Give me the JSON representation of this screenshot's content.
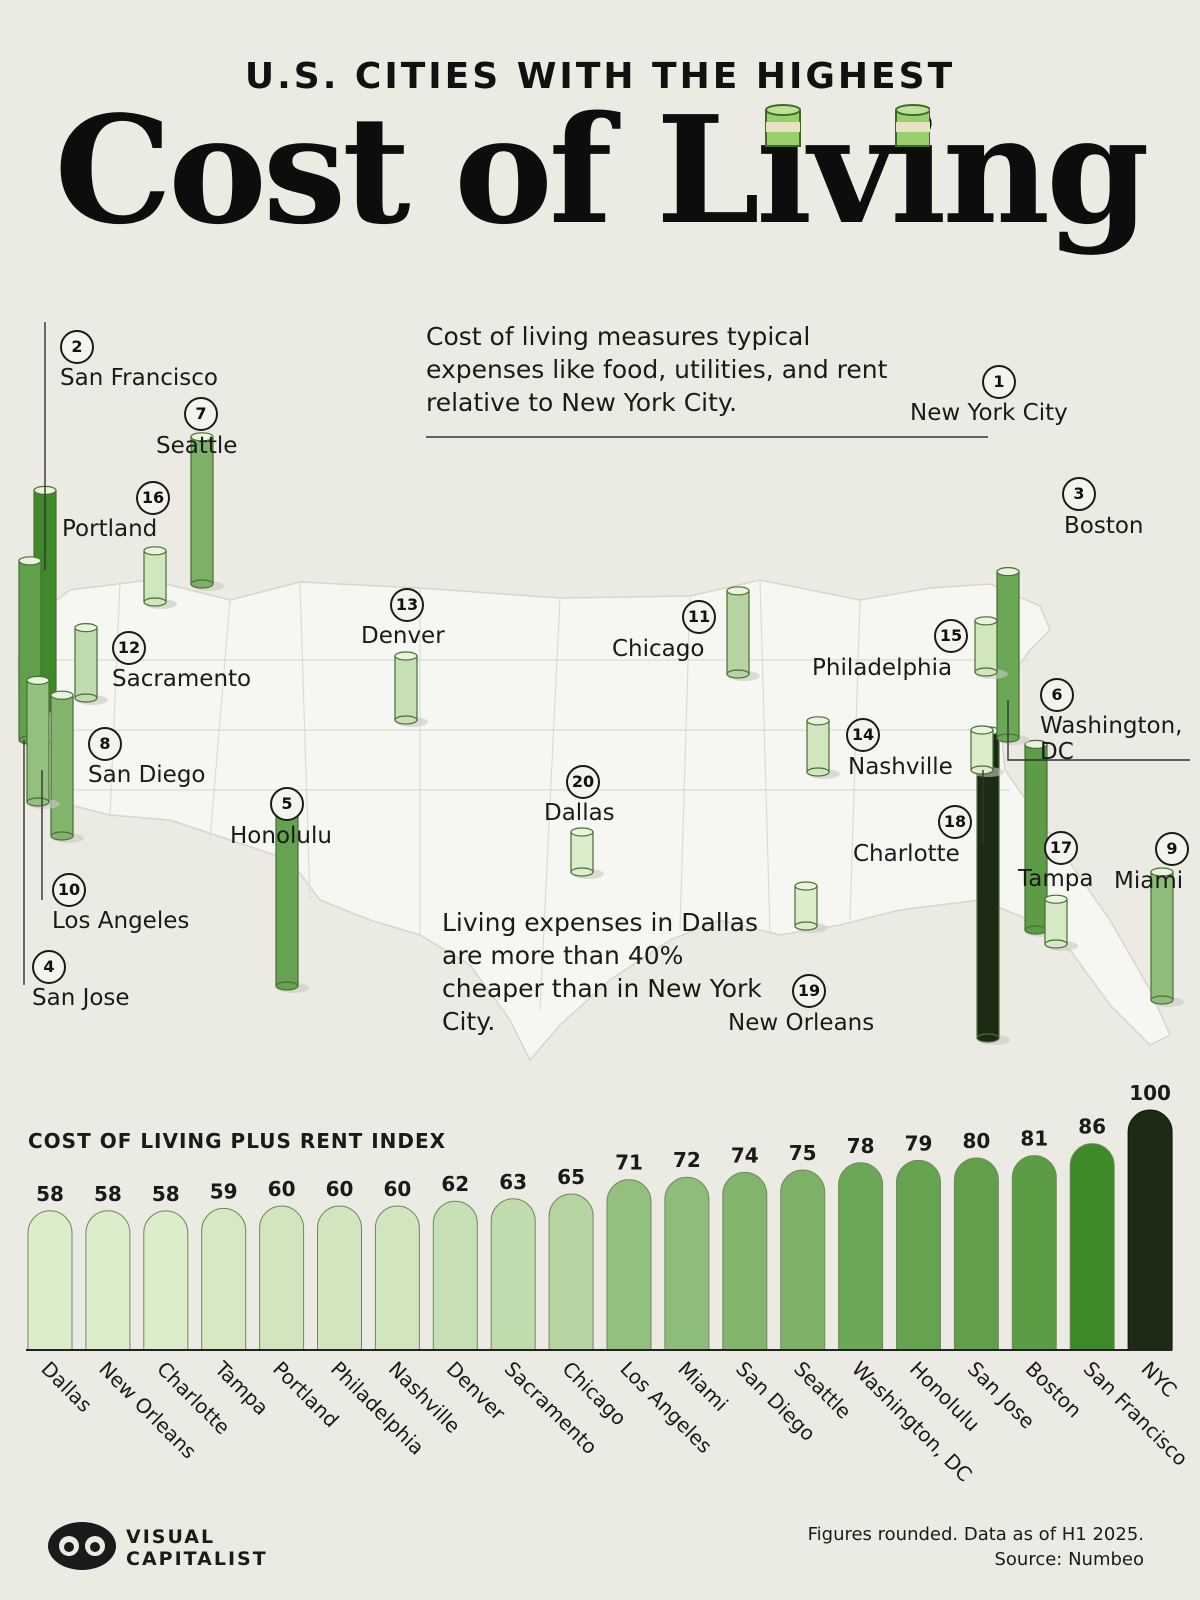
{
  "header": {
    "kicker": "U.S. CITIES WITH THE HIGHEST",
    "headline": "Cost of Living"
  },
  "notes": {
    "top": "Cost of living measures typical expenses like food, utilities, and rent relative to New York City.",
    "dallas": "Living expenses in Dallas are more than 40% cheaper than in New York City."
  },
  "map_cities": [
    {
      "rank": "1",
      "name": "New York City"
    },
    {
      "rank": "2",
      "name": "San Francisco"
    },
    {
      "rank": "3",
      "name": "Boston"
    },
    {
      "rank": "4",
      "name": "San Jose"
    },
    {
      "rank": "5",
      "name": "Honolulu"
    },
    {
      "rank": "6",
      "name": "Washington, DC"
    },
    {
      "rank": "7",
      "name": "Seattle"
    },
    {
      "rank": "8",
      "name": "San Diego"
    },
    {
      "rank": "9",
      "name": "Miami"
    },
    {
      "rank": "10",
      "name": "Los Angeles"
    },
    {
      "rank": "11",
      "name": "Chicago"
    },
    {
      "rank": "12",
      "name": "Sacramento"
    },
    {
      "rank": "13",
      "name": "Denver"
    },
    {
      "rank": "14",
      "name": "Nashville"
    },
    {
      "rank": "15",
      "name": "Philadelphia"
    },
    {
      "rank": "16",
      "name": "Portland"
    },
    {
      "rank": "17",
      "name": "Tampa"
    },
    {
      "rank": "18",
      "name": "Charlotte"
    },
    {
      "rank": "19",
      "name": "New Orleans"
    },
    {
      "rank": "20",
      "name": "Dallas"
    }
  ],
  "chart_data": {
    "type": "bar",
    "title": "COST OF LIVING PLUS RENT INDEX",
    "categories": [
      "Dallas",
      "New Orleans",
      "Charlotte",
      "Tampa",
      "Portland",
      "Philadelphia",
      "Nashville",
      "Denver",
      "Sacramento",
      "Chicago",
      "Los Angeles",
      "Miami",
      "San Diego",
      "Seattle",
      "Washington, DC",
      "Honolulu",
      "San Jose",
      "Boston",
      "San Francisco",
      "NYC"
    ],
    "values": [
      58,
      58,
      58,
      59,
      60,
      60,
      60,
      62,
      63,
      65,
      71,
      72,
      74,
      75,
      78,
      79,
      80,
      81,
      86,
      100
    ],
    "ylim": [
      0,
      100
    ],
    "colors": {
      "lightest": "#dcedcb",
      "darkest": "#3f8a28",
      "max": "#1e2b14"
    },
    "grid": false,
    "legend": "none"
  },
  "footer": {
    "note": "Figures rounded. Data as of H1 2025.",
    "source": "Source: Numbeo",
    "brand_line1": "VISUAL",
    "brand_line2": "CAPITALIST"
  }
}
